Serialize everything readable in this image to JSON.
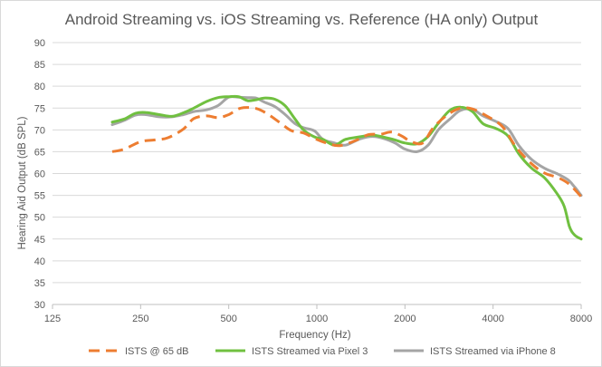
{
  "chart_data": {
    "type": "line",
    "title": "Android Streaming vs. iOS Streaming vs. Reference (HA only) Output",
    "xlabel": "Frequency (Hz)",
    "ylabel": "Hearing Aid Output (dB SPL)",
    "x_scale": "log2",
    "xlim": [
      125,
      8000
    ],
    "ylim": [
      30,
      90
    ],
    "x_ticks": [
      125,
      250,
      500,
      1000,
      2000,
      4000,
      8000
    ],
    "x_tick_labels": [
      "125",
      "250",
      "500",
      "1000",
      "2000",
      "4000",
      "8000"
    ],
    "y_ticks": [
      30,
      35,
      40,
      45,
      50,
      55,
      60,
      65,
      70,
      75,
      80,
      85,
      90
    ],
    "y_tick_labels": [
      "30",
      "35",
      "40",
      "45",
      "50",
      "55",
      "60",
      "65",
      "70",
      "75",
      "80",
      "85",
      "90"
    ],
    "grid": "horizontal",
    "legend_position": "bottom",
    "series": [
      {
        "name": "ISTS @ 65 dB",
        "color": "#ED7D31",
        "style": "dashed",
        "points": [
          [
            200,
            65.0
          ],
          [
            220,
            65.6
          ],
          [
            250,
            67.3
          ],
          [
            280,
            67.7
          ],
          [
            310,
            68.2
          ],
          [
            350,
            70.2
          ],
          [
            380,
            72.6
          ],
          [
            420,
            73.2
          ],
          [
            460,
            72.8
          ],
          [
            500,
            73.5
          ],
          [
            550,
            75.0
          ],
          [
            620,
            74.9
          ],
          [
            680,
            73.6
          ],
          [
            750,
            71.6
          ],
          [
            820,
            69.8
          ],
          [
            900,
            69.3
          ],
          [
            1000,
            67.8
          ],
          [
            1100,
            66.8
          ],
          [
            1200,
            66.4
          ],
          [
            1350,
            67.5
          ],
          [
            1500,
            68.9
          ],
          [
            1650,
            69.0
          ],
          [
            1800,
            69.5
          ],
          [
            1950,
            68.6
          ],
          [
            2100,
            67.3
          ],
          [
            2300,
            67.0
          ],
          [
            2500,
            70.5
          ],
          [
            2800,
            73.5
          ],
          [
            3100,
            75.0
          ],
          [
            3400,
            74.8
          ],
          [
            3800,
            73.2
          ],
          [
            4300,
            70.8
          ],
          [
            4800,
            66.0
          ],
          [
            5400,
            62.3
          ],
          [
            6000,
            60.1
          ],
          [
            6700,
            59.0
          ],
          [
            7300,
            57.5
          ],
          [
            8000,
            54.7
          ]
        ]
      },
      {
        "name": "ISTS Streamed via Pixel 3",
        "color": "#70C040",
        "style": "solid",
        "points": [
          [
            200,
            71.8
          ],
          [
            220,
            72.5
          ],
          [
            240,
            73.8
          ],
          [
            260,
            74.0
          ],
          [
            290,
            73.5
          ],
          [
            320,
            73.1
          ],
          [
            350,
            73.9
          ],
          [
            380,
            75.0
          ],
          [
            420,
            76.5
          ],
          [
            460,
            77.4
          ],
          [
            500,
            77.6
          ],
          [
            540,
            77.6
          ],
          [
            580,
            76.7
          ],
          [
            620,
            76.9
          ],
          [
            660,
            77.3
          ],
          [
            720,
            77.0
          ],
          [
            780,
            75.5
          ],
          [
            840,
            72.6
          ],
          [
            900,
            70.0
          ],
          [
            980,
            68.4
          ],
          [
            1050,
            67.8
          ],
          [
            1150,
            66.5
          ],
          [
            1250,
            67.8
          ],
          [
            1400,
            68.4
          ],
          [
            1550,
            68.8
          ],
          [
            1700,
            68.3
          ],
          [
            1850,
            67.7
          ],
          [
            2000,
            67.0
          ],
          [
            2200,
            66.8
          ],
          [
            2400,
            68.5
          ],
          [
            2600,
            71.5
          ],
          [
            2850,
            74.5
          ],
          [
            3100,
            75.2
          ],
          [
            3400,
            74.2
          ],
          [
            3700,
            71.4
          ],
          [
            4100,
            70.3
          ],
          [
            4500,
            68.6
          ],
          [
            4900,
            64.5
          ],
          [
            5400,
            61.3
          ],
          [
            6000,
            59.0
          ],
          [
            6600,
            55.5
          ],
          [
            7000,
            52.5
          ],
          [
            7300,
            47.8
          ],
          [
            7600,
            45.9
          ],
          [
            8000,
            45.0
          ]
        ]
      },
      {
        "name": "ISTS Streamed via iPhone 8",
        "color": "#A5A5A5",
        "style": "solid",
        "points": [
          [
            200,
            71.2
          ],
          [
            220,
            72.2
          ],
          [
            240,
            73.4
          ],
          [
            260,
            73.5
          ],
          [
            290,
            73.0
          ],
          [
            320,
            73.0
          ],
          [
            350,
            73.5
          ],
          [
            380,
            74.2
          ],
          [
            420,
            74.6
          ],
          [
            460,
            75.6
          ],
          [
            500,
            77.5
          ],
          [
            540,
            77.5
          ],
          [
            580,
            77.4
          ],
          [
            620,
            77.3
          ],
          [
            660,
            76.4
          ],
          [
            720,
            75.3
          ],
          [
            780,
            73.5
          ],
          [
            840,
            71.5
          ],
          [
            900,
            70.5
          ],
          [
            980,
            69.8
          ],
          [
            1050,
            67.8
          ],
          [
            1150,
            67.0
          ],
          [
            1250,
            66.5
          ],
          [
            1400,
            67.9
          ],
          [
            1550,
            68.5
          ],
          [
            1700,
            68.0
          ],
          [
            1850,
            67.0
          ],
          [
            2000,
            65.6
          ],
          [
            2200,
            65.0
          ],
          [
            2400,
            66.5
          ],
          [
            2600,
            70.0
          ],
          [
            2850,
            72.5
          ],
          [
            3100,
            74.5
          ],
          [
            3400,
            74.7
          ],
          [
            3700,
            73.2
          ],
          [
            4100,
            71.9
          ],
          [
            4500,
            70.3
          ],
          [
            4900,
            66.4
          ],
          [
            5400,
            63.3
          ],
          [
            6000,
            61.2
          ],
          [
            6600,
            60.0
          ],
          [
            7200,
            58.6
          ],
          [
            7600,
            56.9
          ],
          [
            8000,
            55.0
          ]
        ]
      }
    ]
  }
}
